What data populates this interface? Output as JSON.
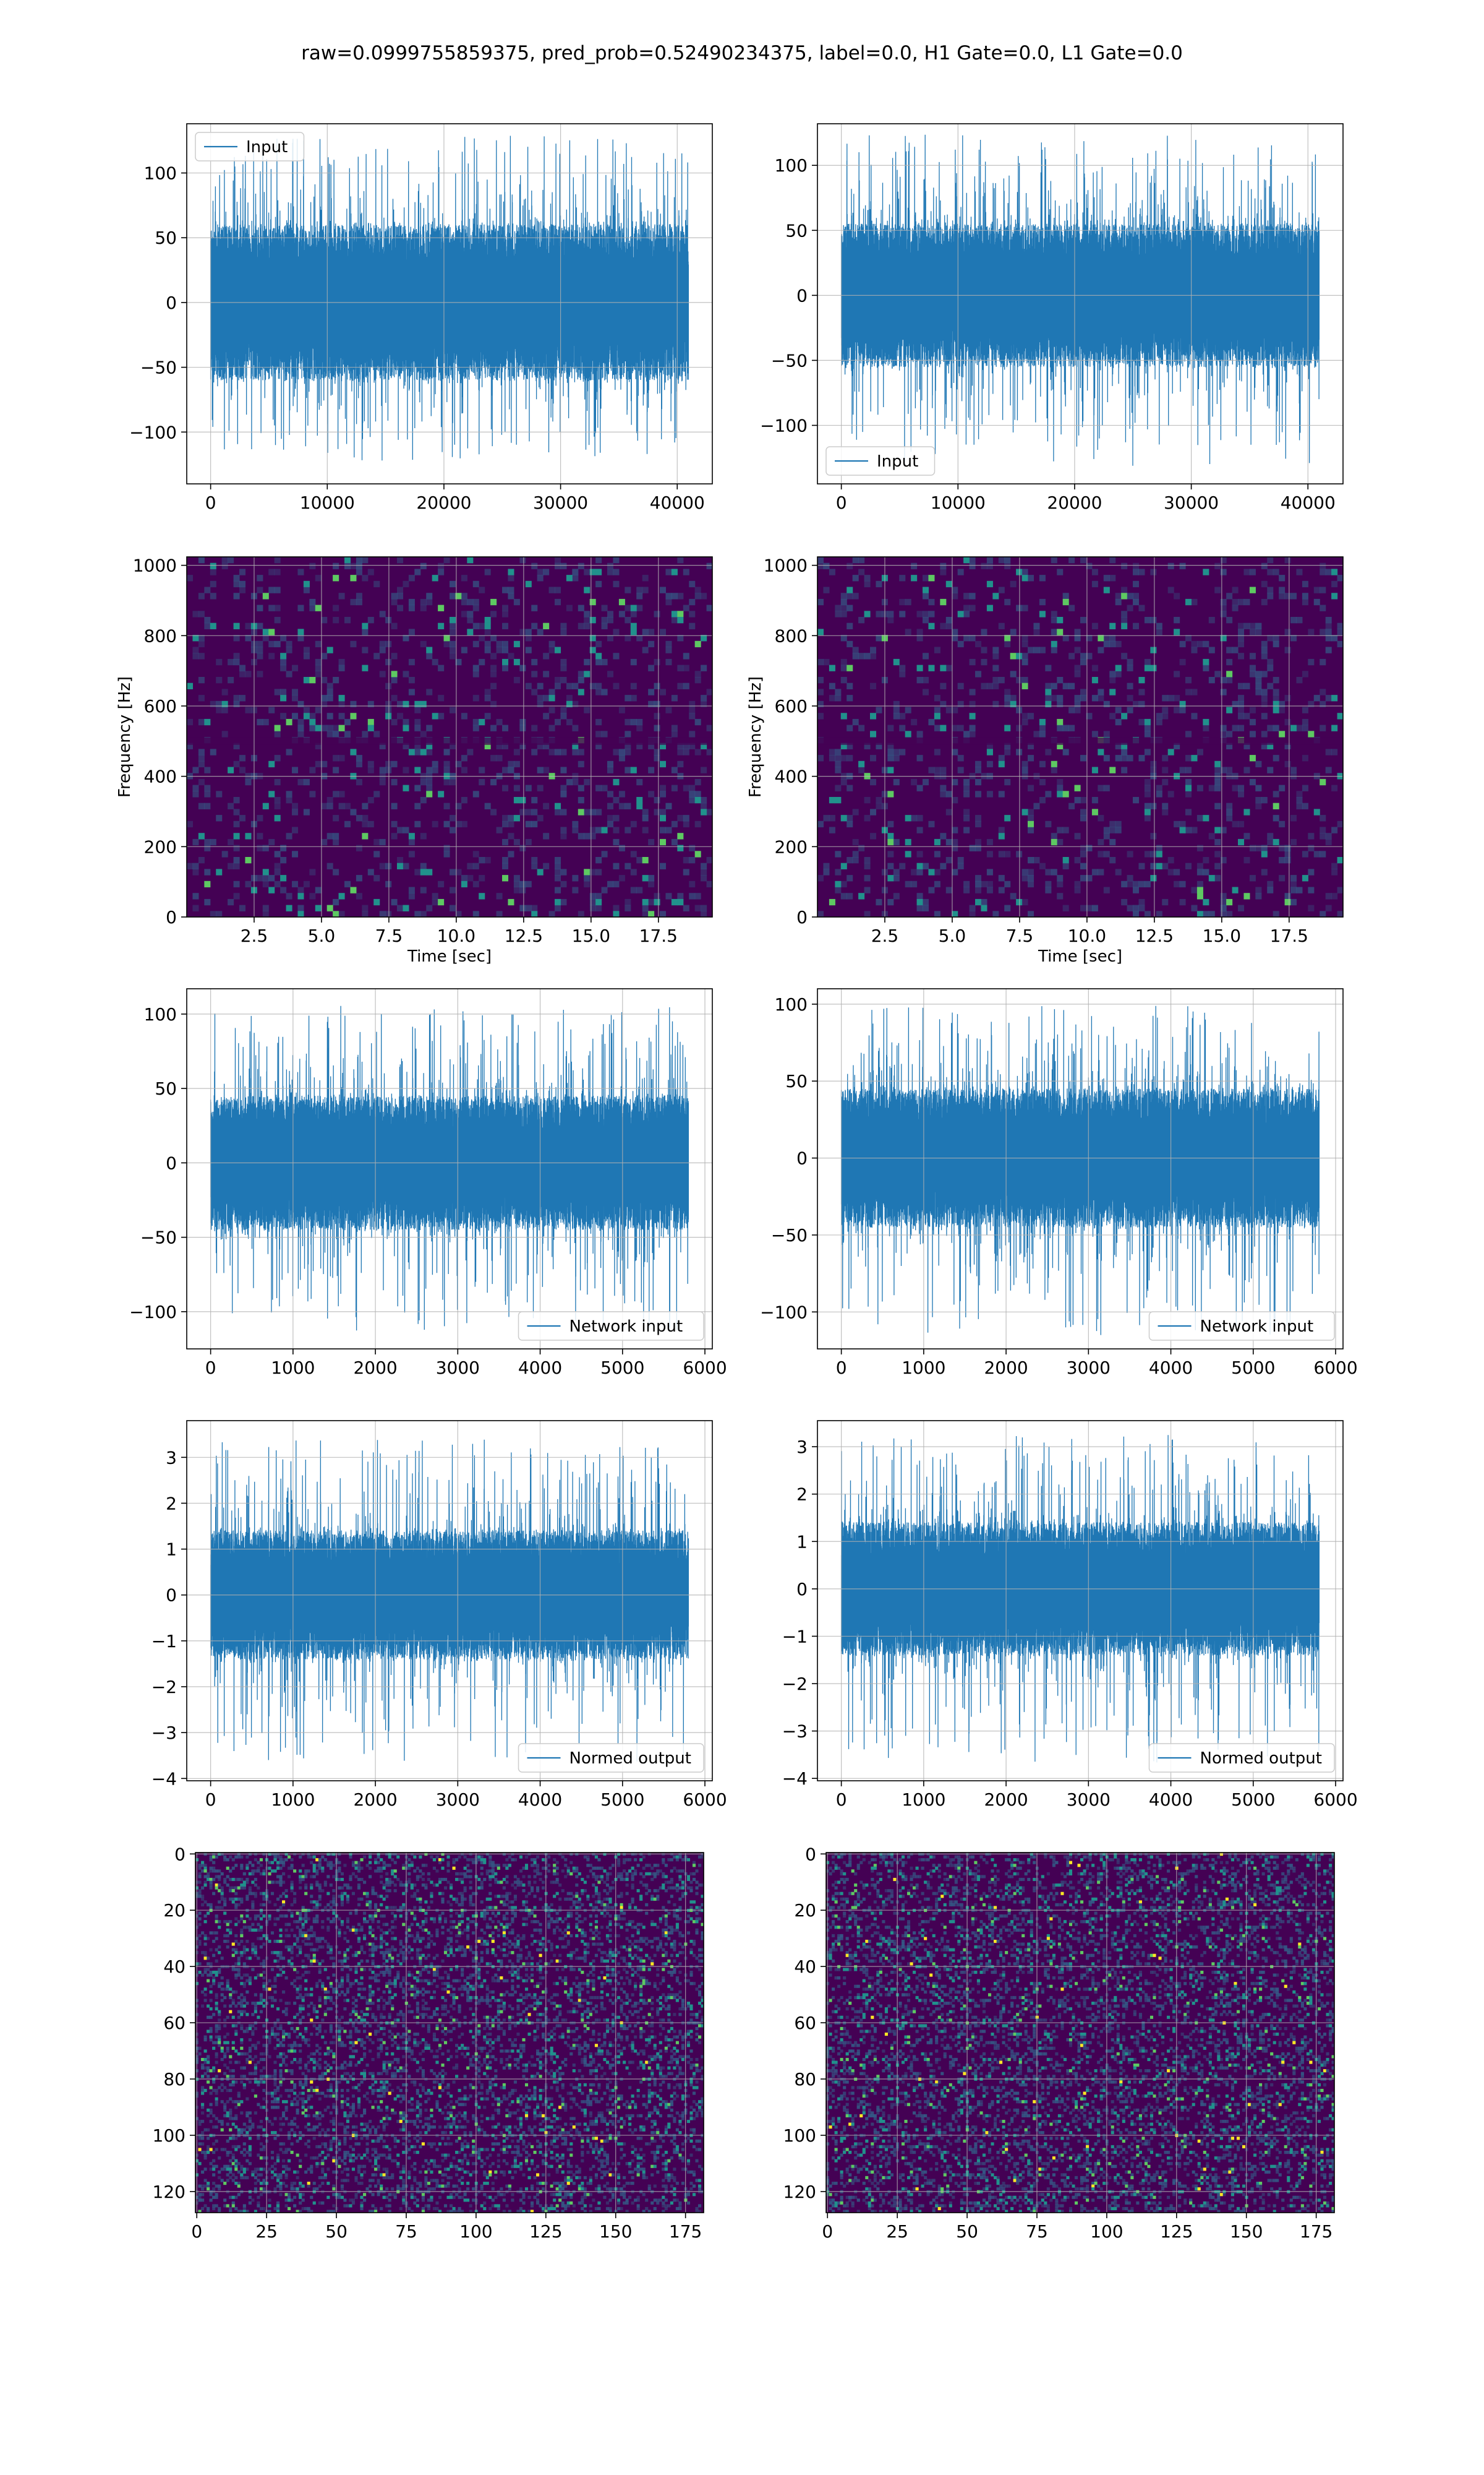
{
  "figure": {
    "title": "raw=0.0999755859375, pred_prob=0.52490234375, label=0.0, H1 Gate=0.0, L1 Gate=0.0"
  },
  "colors": {
    "series": "#1f77b4",
    "grid": "#b0b0b0",
    "spine": "#000000",
    "viridis_low": "#440154",
    "viridis_mid": "#31688e",
    "viridis_midhigh": "#21918c",
    "viridis_high": "#5ec962",
    "viridis_peak": "#fde725"
  },
  "chart_data": [
    {
      "id": "input-h1",
      "type": "line",
      "legend": "Input",
      "legend_loc": "upper left",
      "xlim": [
        -2048,
        43008
      ],
      "ylim": [
        -140,
        138
      ],
      "grid": true,
      "xticks": [
        0,
        10000,
        20000,
        30000,
        40000
      ],
      "xtick_labels": [
        "0",
        "10000",
        "20000",
        "30000",
        "40000"
      ],
      "yticks": [
        -100,
        -50,
        0,
        50,
        100
      ],
      "ytick_labels": [
        "−100",
        "−50",
        "0",
        "50",
        "100"
      ],
      "noise": {
        "n": 40960,
        "x_start": 0,
        "x_end": 40960,
        "typical_min": -60,
        "typical_max": 60,
        "peak_max": 130,
        "peak_min": -122
      },
      "xlabel": "",
      "ylabel": ""
    },
    {
      "id": "input-l1",
      "type": "line",
      "legend": "Input",
      "legend_loc": "lower left",
      "xlim": [
        -2048,
        43008
      ],
      "ylim": [
        -145,
        132
      ],
      "grid": true,
      "xticks": [
        0,
        10000,
        20000,
        30000,
        40000
      ],
      "xtick_labels": [
        "0",
        "10000",
        "20000",
        "30000",
        "40000"
      ],
      "yticks": [
        -100,
        -50,
        0,
        50,
        100
      ],
      "ytick_labels": [
        "−100",
        "−50",
        "0",
        "50",
        "100"
      ],
      "noise": {
        "n": 40960,
        "x_start": 0,
        "x_end": 40960,
        "typical_min": -55,
        "typical_max": 55,
        "peak_max": 124,
        "peak_min": -132
      },
      "xlabel": "",
      "ylabel": ""
    },
    {
      "id": "spectrogram-h1",
      "type": "heatmap",
      "xlim": [
        0,
        19.5
      ],
      "ylim": [
        0,
        1024
      ],
      "grid": true,
      "xticks": [
        2.5,
        5.0,
        7.5,
        10.0,
        12.5,
        15.0,
        17.5
      ],
      "xtick_labels": [
        "2.5",
        "5.0",
        "7.5",
        "10.0",
        "12.5",
        "15.0",
        "17.5"
      ],
      "yticks": [
        0,
        200,
        400,
        600,
        800,
        1000
      ],
      "ytick_labels": [
        "0",
        "200",
        "400",
        "600",
        "800",
        "1000"
      ],
      "xlabel": "Time [sec]",
      "ylabel": "Frequency [Hz]",
      "colormap": "viridis"
    },
    {
      "id": "spectrogram-l1",
      "type": "heatmap",
      "xlim": [
        0,
        19.5
      ],
      "ylim": [
        0,
        1024
      ],
      "grid": true,
      "xticks": [
        2.5,
        5.0,
        7.5,
        10.0,
        12.5,
        15.0,
        17.5
      ],
      "xtick_labels": [
        "2.5",
        "5.0",
        "7.5",
        "10.0",
        "12.5",
        "15.0",
        "17.5"
      ],
      "yticks": [
        0,
        200,
        400,
        600,
        800,
        1000
      ],
      "ytick_labels": [
        "0",
        "200",
        "400",
        "600",
        "800",
        "1000"
      ],
      "xlabel": "Time [sec]",
      "ylabel": "Frequency [Hz]",
      "colormap": "viridis"
    },
    {
      "id": "network-input-h1",
      "type": "line",
      "legend": "Network input",
      "legend_loc": "lower right",
      "xlim": [
        -290,
        6090
      ],
      "ylim": [
        -125,
        117
      ],
      "grid": true,
      "xticks": [
        0,
        1000,
        2000,
        3000,
        4000,
        5000,
        6000
      ],
      "xtick_labels": [
        "0",
        "1000",
        "2000",
        "3000",
        "4000",
        "5000",
        "6000"
      ],
      "yticks": [
        -100,
        -50,
        0,
        50,
        100
      ],
      "ytick_labels": [
        "−100",
        "−50",
        "0",
        "50",
        "100"
      ],
      "noise": {
        "n": 5800,
        "x_start": 0,
        "x_end": 5800,
        "typical_min": -45,
        "typical_max": 45,
        "peak_max": 106,
        "peak_min": -113
      },
      "xlabel": "",
      "ylabel": ""
    },
    {
      "id": "network-input-l1",
      "type": "line",
      "legend": "Network input",
      "legend_loc": "lower right",
      "xlim": [
        -290,
        6090
      ],
      "ylim": [
        -124,
        110
      ],
      "grid": true,
      "xticks": [
        0,
        1000,
        2000,
        3000,
        4000,
        5000,
        6000
      ],
      "xtick_labels": [
        "0",
        "1000",
        "2000",
        "3000",
        "4000",
        "5000",
        "6000"
      ],
      "yticks": [
        -100,
        -50,
        0,
        50,
        100
      ],
      "ytick_labels": [
        "−100",
        "−50",
        "0",
        "50",
        "100"
      ],
      "noise": {
        "n": 5800,
        "x_start": 0,
        "x_end": 5800,
        "typical_min": -45,
        "typical_max": 45,
        "peak_max": 100,
        "peak_min": -115
      },
      "xlabel": "",
      "ylabel": ""
    },
    {
      "id": "normed-output-h1",
      "type": "line",
      "legend": "Normed output",
      "legend_loc": "lower right",
      "xlim": [
        -290,
        6090
      ],
      "ylim": [
        -4.05,
        3.8
      ],
      "grid": true,
      "xticks": [
        0,
        1000,
        2000,
        3000,
        4000,
        5000,
        6000
      ],
      "xtick_labels": [
        "0",
        "1000",
        "2000",
        "3000",
        "4000",
        "5000",
        "6000"
      ],
      "yticks": [
        -4,
        -3,
        -2,
        -1,
        0,
        1,
        2,
        3
      ],
      "ytick_labels": [
        "−4",
        "−3",
        "−2",
        "−1",
        "0",
        "1",
        "2",
        "3"
      ],
      "noise": {
        "n": 5800,
        "x_start": 0,
        "x_end": 5800,
        "typical_min": -1.4,
        "typical_max": 1.4,
        "peak_max": 3.4,
        "peak_min": -3.7
      },
      "xlabel": "",
      "ylabel": ""
    },
    {
      "id": "normed-output-l1",
      "type": "line",
      "legend": "Normed output",
      "legend_loc": "lower right",
      "xlim": [
        -290,
        6090
      ],
      "ylim": [
        -4.05,
        3.55
      ],
      "grid": true,
      "xticks": [
        0,
        1000,
        2000,
        3000,
        4000,
        5000,
        6000
      ],
      "xtick_labels": [
        "0",
        "1000",
        "2000",
        "3000",
        "4000",
        "5000",
        "6000"
      ],
      "yticks": [
        -4,
        -3,
        -2,
        -1,
        0,
        1,
        2,
        3
      ],
      "ytick_labels": [
        "−4",
        "−3",
        "−2",
        "−1",
        "0",
        "1",
        "2",
        "3"
      ],
      "noise": {
        "n": 5800,
        "x_start": 0,
        "x_end": 5800,
        "typical_min": -1.4,
        "typical_max": 1.4,
        "peak_max": 3.3,
        "peak_min": -3.7
      },
      "xlabel": "",
      "ylabel": ""
    },
    {
      "id": "image-h1",
      "type": "heatmap",
      "xlim": [
        -0.5,
        181.5
      ],
      "ylim": [
        127.5,
        -0.5
      ],
      "grid": true,
      "xticks": [
        0,
        25,
        50,
        75,
        100,
        125,
        150,
        175
      ],
      "xtick_labels": [
        "0",
        "25",
        "50",
        "75",
        "100",
        "125",
        "150",
        "175"
      ],
      "yticks": [
        0,
        20,
        40,
        60,
        80,
        100,
        120
      ],
      "ytick_labels": [
        "0",
        "20",
        "40",
        "60",
        "80",
        "100",
        "120"
      ],
      "xlabel": "",
      "ylabel": "",
      "colormap": "viridis"
    },
    {
      "id": "image-l1",
      "type": "heatmap",
      "xlim": [
        -0.5,
        181.5
      ],
      "ylim": [
        127.5,
        -0.5
      ],
      "grid": true,
      "xticks": [
        0,
        25,
        50,
        75,
        100,
        125,
        150,
        175
      ],
      "xtick_labels": [
        "0",
        "25",
        "50",
        "75",
        "100",
        "125",
        "150",
        "175"
      ],
      "yticks": [
        0,
        20,
        40,
        60,
        80,
        100,
        120
      ],
      "ytick_labels": [
        "0",
        "20",
        "40",
        "60",
        "80",
        "100",
        "120"
      ],
      "xlabel": "",
      "ylabel": "",
      "colormap": "viridis"
    }
  ]
}
